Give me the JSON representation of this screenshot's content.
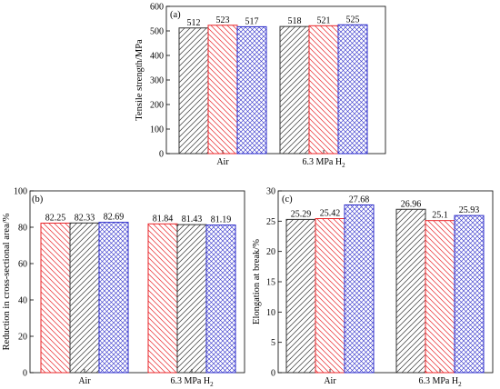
{
  "chart_data": [
    {
      "type": "bar",
      "panel_label": "(a)",
      "title": "",
      "ylabel": "Tensile strength/MPa",
      "xlabel": "",
      "categories": [
        "Air",
        "6.3 MPa H2"
      ],
      "category_labels": [
        {
          "main": "Air",
          "sub": ""
        },
        {
          "main": "6.3 MPa H",
          "sub": "2"
        }
      ],
      "ylim": [
        0,
        600
      ],
      "yticks": [
        0,
        100,
        200,
        300,
        400,
        500,
        600
      ],
      "ytick_labels": [
        "0",
        "100",
        "200",
        "300",
        "400",
        "500",
        "600"
      ],
      "grid": false,
      "series": [
        {
          "values": [
            512,
            518
          ],
          "labels": [
            "512",
            "518"
          ],
          "color": "#333333",
          "pattern": "diag-up"
        },
        {
          "values": [
            523,
            521
          ],
          "labels": [
            "523",
            "521"
          ],
          "color": "#e8262a",
          "pattern": "diag-down"
        },
        {
          "values": [
            517,
            525
          ],
          "labels": [
            "517",
            "525"
          ],
          "color": "#2828c8",
          "pattern": "crosshatch"
        }
      ]
    },
    {
      "type": "bar",
      "panel_label": "(b)",
      "title": "",
      "ylabel": "Reduction in cross-sectional area/%",
      "xlabel": "",
      "categories": [
        "Air",
        "6.3 MPa H2"
      ],
      "category_labels": [
        {
          "main": "Air",
          "sub": ""
        },
        {
          "main": "6.3 MPa H",
          "sub": "2"
        }
      ],
      "ylim": [
        0,
        100
      ],
      "yticks": [
        0,
        20,
        40,
        60,
        80,
        100
      ],
      "ytick_labels": [
        "0",
        "20",
        "40",
        "60",
        "80",
        "100"
      ],
      "grid": false,
      "series": [
        {
          "values": [
            82.25,
            81.84
          ],
          "labels": [
            "82.25",
            "81.84"
          ],
          "color": "#e8262a",
          "pattern": "diag-down"
        },
        {
          "values": [
            82.33,
            81.43
          ],
          "labels": [
            "82.33",
            "81.43"
          ],
          "color": "#333333",
          "pattern": "diag-up"
        },
        {
          "values": [
            82.69,
            81.19
          ],
          "labels": [
            "82.69",
            "81.19"
          ],
          "color": "#2828c8",
          "pattern": "crosshatch"
        }
      ]
    },
    {
      "type": "bar",
      "panel_label": "(c)",
      "title": "",
      "ylabel": "Elongation at break/%",
      "xlabel": "",
      "categories": [
        "Air",
        "6.3 MPa H2"
      ],
      "category_labels": [
        {
          "main": "Air",
          "sub": ""
        },
        {
          "main": "6.3 MPa H",
          "sub": "2"
        }
      ],
      "ylim": [
        0,
        30
      ],
      "yticks": [
        0,
        5,
        10,
        15,
        20,
        25,
        30
      ],
      "ytick_labels": [
        "0",
        "5",
        "10",
        "15",
        "20",
        "25",
        "30"
      ],
      "grid": false,
      "series": [
        {
          "values": [
            25.29,
            26.96
          ],
          "labels": [
            "25.29",
            "26.96"
          ],
          "color": "#333333",
          "pattern": "diag-up"
        },
        {
          "values": [
            25.42,
            25.1
          ],
          "labels": [
            "25.42",
            "25.1"
          ],
          "color": "#e8262a",
          "pattern": "diag-down"
        },
        {
          "values": [
            27.68,
            25.93
          ],
          "labels": [
            "27.68",
            "25.93"
          ],
          "color": "#2828c8",
          "pattern": "crosshatch"
        }
      ]
    }
  ]
}
